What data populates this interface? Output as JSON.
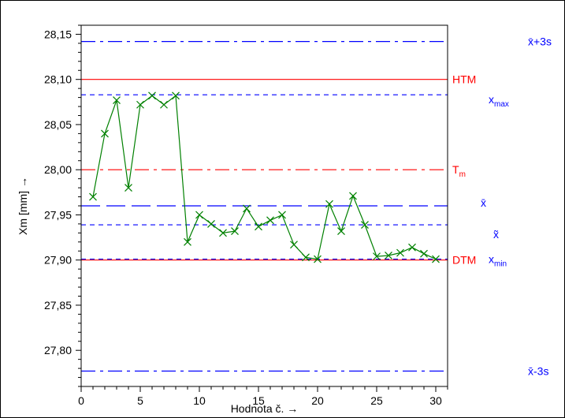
{
  "chart_data": {
    "type": "line",
    "title": "",
    "xlabel": "Hodnota č. →",
    "ylabel": "Xm [mm] →",
    "xlim": [
      0,
      31
    ],
    "ylim": [
      27.76,
      28.16
    ],
    "x_ticks": [
      0,
      5,
      10,
      15,
      20,
      25,
      30
    ],
    "x_tick_labels": [
      "0",
      "5",
      "10",
      "15",
      "20",
      "25",
      "30"
    ],
    "y_ticks": [
      27.8,
      27.85,
      27.9,
      27.95,
      28.0,
      28.05,
      28.1,
      28.15
    ],
    "y_tick_labels": [
      "27,80",
      "27,85",
      "27,90",
      "27,95",
      "28,00",
      "28,05",
      "28,10",
      "28,15"
    ],
    "grid": false,
    "series": [
      {
        "color": "#008000",
        "marker": "x",
        "x": [
          1,
          2,
          3,
          4,
          5,
          6,
          7,
          8,
          9,
          10,
          11,
          12,
          13,
          14,
          15,
          16,
          17,
          18,
          19,
          20,
          21,
          22,
          23,
          24,
          25,
          26,
          27,
          28,
          29,
          30
        ],
        "values": [
          27.97,
          28.04,
          28.077,
          27.98,
          28.072,
          28.082,
          28.072,
          28.082,
          27.92,
          27.95,
          27.94,
          27.93,
          27.932,
          27.957,
          27.937,
          27.944,
          27.95,
          27.917,
          27.903,
          27.901,
          27.962,
          27.932,
          27.971,
          27.939,
          27.904,
          27.905,
          27.908,
          27.914,
          27.907,
          27.901
        ]
      }
    ],
    "reference_lines": [
      {
        "id": "ucl",
        "value": 28.142,
        "color": "#0000ff",
        "style": "dashdot",
        "label_main": "x̄+3s",
        "label_sub": ""
      },
      {
        "id": "htm",
        "value": 28.1,
        "color": "#ff0000",
        "style": "solid",
        "label_main": "HTM",
        "label_sub": ""
      },
      {
        "id": "xmax",
        "value": 28.083,
        "color": "#0000ff",
        "style": "dashed",
        "label_main": "x",
        "label_sub": "max"
      },
      {
        "id": "tm",
        "value": 28.0,
        "color": "#ff0000",
        "style": "dashdot",
        "label_main": "T",
        "label_sub": "m"
      },
      {
        "id": "mean",
        "value": 27.96,
        "color": "#0000ff",
        "style": "longdash",
        "label_main": "x̄",
        "label_sub": ""
      },
      {
        "id": "median",
        "value": 27.939,
        "color": "#0000ff",
        "style": "dashed",
        "label_main": "x̃",
        "label_sub": ""
      },
      {
        "id": "dtm",
        "value": 27.9,
        "color": "#ff0000",
        "style": "solid",
        "label_main": "DTM",
        "label_sub": ""
      },
      {
        "id": "xmin",
        "value": 27.901,
        "color": "#0000ff",
        "style": "dashed",
        "label_main": "x",
        "label_sub": "min"
      },
      {
        "id": "lcl",
        "value": 27.777,
        "color": "#0000ff",
        "style": "dashdot",
        "label_main": "x̄-3s",
        "label_sub": ""
      }
    ]
  }
}
